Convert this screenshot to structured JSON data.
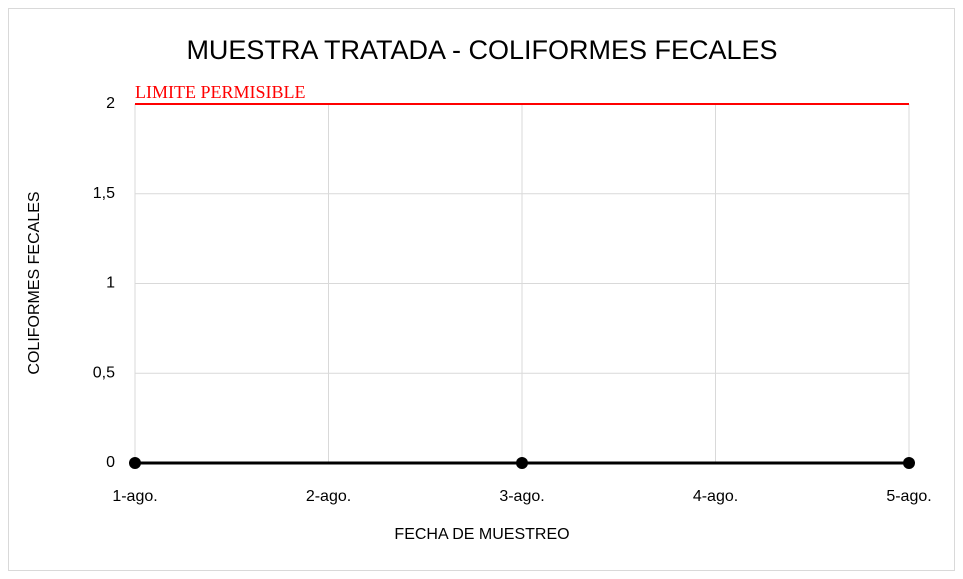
{
  "chart_data": {
    "type": "line",
    "title": "MUESTRA TRATADA - COLIFORMES FECALES",
    "x_label": "FECHA DE MUESTREO",
    "y_label": "COLIFORMES FECALES",
    "categories": [
      "1-ago.",
      "2-ago.",
      "3-ago.",
      "4-ago.",
      "5-ago."
    ],
    "series": [
      {
        "color": "#000000",
        "x": [
          "1-ago.",
          "3-ago.",
          "5-ago."
        ],
        "values": [
          0,
          0,
          0
        ]
      }
    ],
    "limit": {
      "label": "LIMITE PERMISIBLE",
      "value": 2,
      "color": "#ff0000"
    },
    "ylim": [
      0,
      2
    ],
    "yticks": [
      0,
      {
        "value": 0.5,
        "label": "0,5"
      },
      1,
      {
        "value": 1.5,
        "label": "1,5"
      },
      2
    ],
    "grid": true
  }
}
